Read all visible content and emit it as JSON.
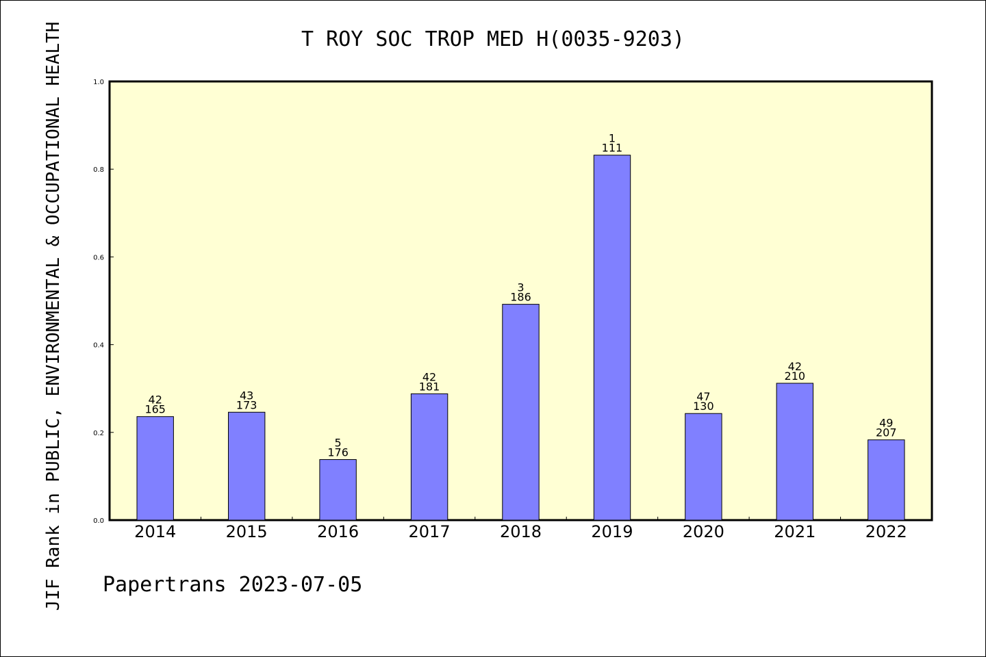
{
  "chart_data": {
    "type": "bar",
    "title": "T ROY SOC TROP MED H(0035-9203)",
    "ylabel": "JIF Rank in PUBLIC, ENVIRONMENTAL & OCCUPATIONAL HEALTH",
    "footer": "Papertrans 2023-07-05",
    "categories": [
      "2014",
      "2015",
      "2016",
      "2017",
      "2018",
      "2019",
      "2020",
      "2021",
      "2022"
    ],
    "values": [
      0.236,
      0.246,
      0.138,
      0.288,
      0.492,
      0.832,
      0.243,
      0.312,
      0.183
    ],
    "rank_labels": [
      "42",
      "43",
      "5",
      "42",
      "3",
      "1",
      "47",
      "42",
      "49"
    ],
    "total_labels": [
      "165",
      "173",
      "176",
      "181",
      "186",
      "111",
      "130",
      "210",
      "207"
    ],
    "ylim": [
      0,
      1.0
    ],
    "yticks": [
      "0.0",
      "0.2",
      "0.4",
      "0.6",
      "0.8",
      "1.0"
    ],
    "ytick_values": [
      0,
      0.2,
      0.4,
      0.6,
      0.8,
      1.0
    ],
    "colors": {
      "plot_bg": "#ffffd4",
      "bar": "#8080ff",
      "bar_stroke": "#000000"
    },
    "grid": false,
    "legend": "none"
  }
}
